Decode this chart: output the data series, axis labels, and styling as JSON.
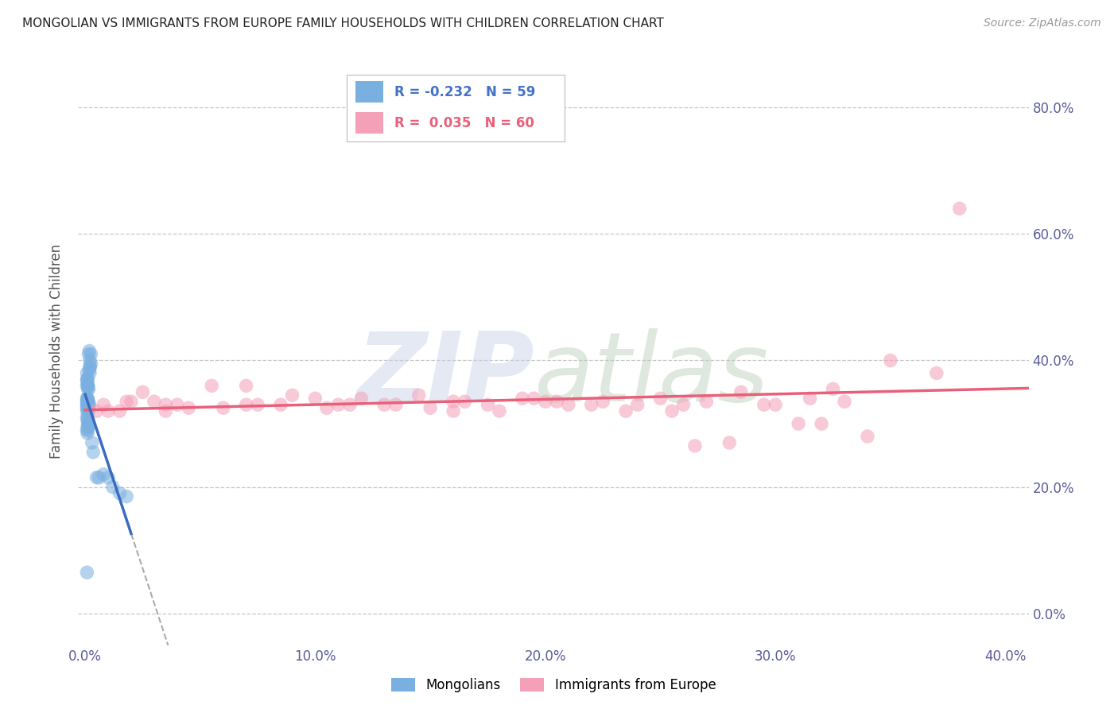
{
  "title": "MONGOLIAN VS IMMIGRANTS FROM EUROPE FAMILY HOUSEHOLDS WITH CHILDREN CORRELATION CHART",
  "source": "Source: ZipAtlas.com",
  "ylabel": "Family Households with Children",
  "mongolian_R": -0.232,
  "mongolian_N": 59,
  "europe_R": 0.035,
  "europe_N": 60,
  "xlim": [
    -0.003,
    0.41
  ],
  "ylim": [
    -0.05,
    0.88
  ],
  "yticks": [
    0.0,
    0.2,
    0.4,
    0.6,
    0.8
  ],
  "xticks": [
    0.0,
    0.1,
    0.2,
    0.3,
    0.4
  ],
  "mongolian_color": "#7ab0e0",
  "europe_color": "#f4a0b8",
  "mongolian_line_color": "#3a6bbf",
  "europe_line_color": "#e8607a",
  "background_color": "#ffffff",
  "grid_color": "#c8c8c8",
  "title_color": "#222222",
  "tick_color": "#5a5a9a",
  "mongolian_x": [
    0.0008,
    0.001,
    0.0012,
    0.0015,
    0.001,
    0.0008,
    0.0012,
    0.0015,
    0.0018,
    0.001,
    0.0008,
    0.0012,
    0.001,
    0.0015,
    0.0008,
    0.001,
    0.0012,
    0.0008,
    0.001,
    0.0015,
    0.0008,
    0.001,
    0.0012,
    0.0008,
    0.001,
    0.0012,
    0.0015,
    0.001,
    0.0008,
    0.0012,
    0.0008,
    0.001,
    0.0012,
    0.0015,
    0.001,
    0.0012,
    0.0008,
    0.001,
    0.0015,
    0.0012,
    0.002,
    0.0025,
    0.002,
    0.0018,
    0.0022,
    0.0015,
    0.0018,
    0.002,
    0.0025,
    0.003,
    0.0035,
    0.005,
    0.006,
    0.008,
    0.01,
    0.012,
    0.015,
    0.018,
    0.0008
  ],
  "mongolian_y": [
    0.33,
    0.34,
    0.33,
    0.32,
    0.33,
    0.34,
    0.33,
    0.325,
    0.33,
    0.335,
    0.335,
    0.33,
    0.335,
    0.33,
    0.325,
    0.34,
    0.33,
    0.32,
    0.325,
    0.335,
    0.37,
    0.365,
    0.355,
    0.36,
    0.37,
    0.36,
    0.355,
    0.37,
    0.38,
    0.36,
    0.31,
    0.305,
    0.31,
    0.3,
    0.295,
    0.3,
    0.29,
    0.285,
    0.295,
    0.29,
    0.39,
    0.395,
    0.38,
    0.385,
    0.39,
    0.41,
    0.415,
    0.4,
    0.41,
    0.27,
    0.255,
    0.215,
    0.215,
    0.22,
    0.215,
    0.2,
    0.19,
    0.185,
    0.065
  ],
  "europe_x": [
    0.005,
    0.015,
    0.025,
    0.035,
    0.045,
    0.06,
    0.075,
    0.09,
    0.105,
    0.12,
    0.135,
    0.15,
    0.165,
    0.18,
    0.195,
    0.21,
    0.225,
    0.24,
    0.255,
    0.27,
    0.285,
    0.3,
    0.315,
    0.33,
    0.35,
    0.37,
    0.01,
    0.02,
    0.03,
    0.04,
    0.055,
    0.07,
    0.085,
    0.1,
    0.115,
    0.13,
    0.145,
    0.16,
    0.175,
    0.19,
    0.205,
    0.22,
    0.235,
    0.25,
    0.265,
    0.28,
    0.295,
    0.31,
    0.325,
    0.34,
    0.008,
    0.018,
    0.035,
    0.07,
    0.11,
    0.16,
    0.2,
    0.26,
    0.32,
    0.38
  ],
  "europe_y": [
    0.32,
    0.32,
    0.35,
    0.33,
    0.325,
    0.325,
    0.33,
    0.345,
    0.325,
    0.34,
    0.33,
    0.325,
    0.335,
    0.32,
    0.34,
    0.33,
    0.335,
    0.33,
    0.32,
    0.335,
    0.35,
    0.33,
    0.34,
    0.335,
    0.4,
    0.38,
    0.32,
    0.335,
    0.335,
    0.33,
    0.36,
    0.33,
    0.33,
    0.34,
    0.33,
    0.33,
    0.345,
    0.32,
    0.33,
    0.34,
    0.335,
    0.33,
    0.32,
    0.34,
    0.265,
    0.27,
    0.33,
    0.3,
    0.355,
    0.28,
    0.33,
    0.335,
    0.32,
    0.36,
    0.33,
    0.335,
    0.335,
    0.33,
    0.3,
    0.64
  ],
  "legend_items": [
    {
      "label": "R = -0.232   N = 59",
      "color": "#7ab0e0",
      "text_color": "#4472c4"
    },
    {
      "label": "R =  0.035   N = 60",
      "color": "#f4a0b8",
      "text_color": "#e8607a"
    }
  ],
  "bottom_legend": [
    {
      "label": "Mongolians",
      "color": "#7ab0e0"
    },
    {
      "label": "Immigrants from Europe",
      "color": "#f4a0b8"
    }
  ]
}
